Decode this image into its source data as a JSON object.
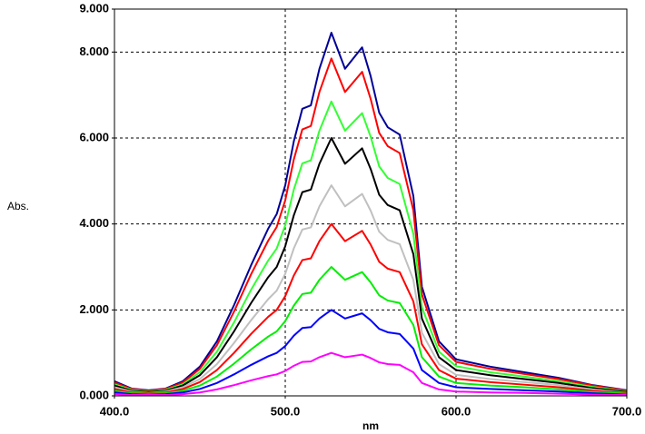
{
  "chart_data": {
    "type": "line",
    "xlabel": "nm",
    "ylabel": "Abs.",
    "x": [
      400,
      410,
      420,
      430,
      440,
      450,
      460,
      470,
      480,
      490,
      495,
      500,
      505,
      510,
      515,
      520,
      527,
      535,
      545,
      550,
      555,
      560,
      567,
      575,
      580,
      590,
      600,
      620,
      640,
      660,
      680,
      700
    ],
    "xlim": [
      400,
      700
    ],
    "xticks": [
      {
        "value": 400,
        "label": "400.0"
      },
      {
        "value": 500,
        "label": "500.0"
      },
      {
        "value": 600,
        "label": "600.0"
      },
      {
        "value": 700,
        "label": "700.0"
      }
    ],
    "ylim": [
      0,
      9
    ],
    "yticks": [
      {
        "value": 0,
        "label": "0.000"
      },
      {
        "value": 2,
        "label": "2.000"
      },
      {
        "value": 4,
        "label": "4.000"
      },
      {
        "value": 6,
        "label": "6.000"
      },
      {
        "value": 8,
        "label": "8.000"
      },
      {
        "value": 9,
        "label": "9.000"
      }
    ],
    "grid": true,
    "series": [
      {
        "color": "#000099",
        "values": [
          0.34,
          0.17,
          0.13,
          0.17,
          0.34,
          0.68,
          1.27,
          2.11,
          3.04,
          3.89,
          4.23,
          4.9,
          5.92,
          6.68,
          6.76,
          7.61,
          8.45,
          7.61,
          8.11,
          7.44,
          6.59,
          6.25,
          6.08,
          4.65,
          2.54,
          1.27,
          0.85,
          0.68,
          0.55,
          0.42,
          0.25,
          0.13
        ]
      },
      {
        "color": "#ff0000",
        "values": [
          0.31,
          0.16,
          0.12,
          0.16,
          0.31,
          0.63,
          1.18,
          1.96,
          2.83,
          3.61,
          3.93,
          4.55,
          5.5,
          6.2,
          6.28,
          7.07,
          7.85,
          7.07,
          7.54,
          6.91,
          6.12,
          5.81,
          5.65,
          4.32,
          2.36,
          1.18,
          0.79,
          0.63,
          0.51,
          0.39,
          0.24,
          0.12
        ]
      },
      {
        "color": "#33ff33",
        "values": [
          0.27,
          0.14,
          0.1,
          0.14,
          0.27,
          0.55,
          1.03,
          1.71,
          2.47,
          3.15,
          3.43,
          3.97,
          4.8,
          5.41,
          5.48,
          6.17,
          6.85,
          6.17,
          6.58,
          6.03,
          5.34,
          5.07,
          4.93,
          3.77,
          2.06,
          1.03,
          0.69,
          0.55,
          0.45,
          0.34,
          0.21,
          0.1
        ]
      },
      {
        "color": "#000000",
        "values": [
          0.24,
          0.12,
          0.09,
          0.12,
          0.24,
          0.48,
          0.9,
          1.5,
          2.16,
          2.76,
          3.0,
          3.48,
          4.2,
          4.74,
          4.8,
          5.4,
          6.0,
          5.4,
          5.76,
          5.28,
          4.68,
          4.44,
          4.32,
          3.3,
          1.8,
          0.9,
          0.6,
          0.48,
          0.39,
          0.3,
          0.18,
          0.09
        ]
      },
      {
        "color": "#c0c0c0",
        "values": [
          0.2,
          0.1,
          0.07,
          0.1,
          0.2,
          0.39,
          0.74,
          1.23,
          1.76,
          2.25,
          2.45,
          2.84,
          3.43,
          3.87,
          3.92,
          4.41,
          4.9,
          4.41,
          4.7,
          4.31,
          3.82,
          3.63,
          3.53,
          2.7,
          1.47,
          0.74,
          0.49,
          0.39,
          0.32,
          0.25,
          0.15,
          0.07
        ]
      },
      {
        "color": "#ff0000",
        "values": [
          0.16,
          0.08,
          0.06,
          0.08,
          0.16,
          0.32,
          0.6,
          1.0,
          1.44,
          1.84,
          2.0,
          2.32,
          2.8,
          3.16,
          3.2,
          3.6,
          4.0,
          3.6,
          3.84,
          3.52,
          3.12,
          2.96,
          2.88,
          2.2,
          1.2,
          0.6,
          0.4,
          0.32,
          0.26,
          0.2,
          0.12,
          0.06
        ]
      },
      {
        "color": "#00ee00",
        "values": [
          0.12,
          0.06,
          0.05,
          0.06,
          0.12,
          0.24,
          0.45,
          0.75,
          1.08,
          1.38,
          1.5,
          1.74,
          2.1,
          2.37,
          2.4,
          2.7,
          3.0,
          2.7,
          2.88,
          2.64,
          2.34,
          2.22,
          2.16,
          1.65,
          0.9,
          0.45,
          0.3,
          0.24,
          0.2,
          0.15,
          0.09,
          0.05
        ]
      },
      {
        "color": "#0000ff",
        "values": [
          0.08,
          0.04,
          0.03,
          0.04,
          0.08,
          0.16,
          0.3,
          0.5,
          0.72,
          0.92,
          1.0,
          1.16,
          1.4,
          1.58,
          1.6,
          1.8,
          2.0,
          1.8,
          1.92,
          1.76,
          1.56,
          1.48,
          1.44,
          1.1,
          0.6,
          0.3,
          0.2,
          0.16,
          0.13,
          0.1,
          0.06,
          0.03
        ]
      },
      {
        "color": "#ff00ff",
        "values": [
          0.04,
          0.02,
          0.02,
          0.02,
          0.04,
          0.08,
          0.15,
          0.25,
          0.36,
          0.46,
          0.5,
          0.58,
          0.7,
          0.79,
          0.8,
          0.9,
          1.0,
          0.9,
          0.96,
          0.88,
          0.78,
          0.74,
          0.72,
          0.55,
          0.3,
          0.15,
          0.1,
          0.08,
          0.07,
          0.05,
          0.03,
          0.02
        ]
      }
    ]
  }
}
